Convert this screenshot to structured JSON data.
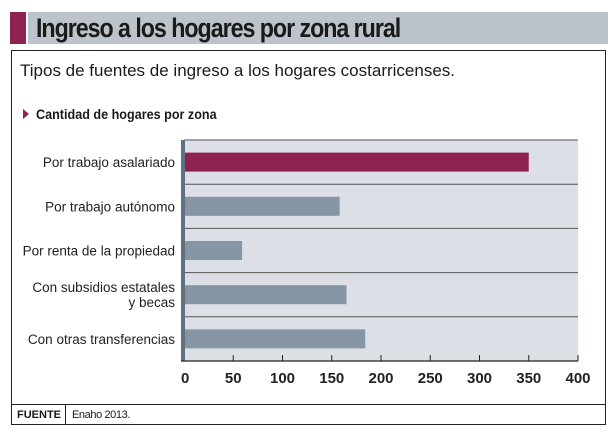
{
  "header": {
    "title": "Ingreso a los hogares por zona rural"
  },
  "subtitle": "Tipos de fuentes de ingreso a los hogares costarricenses.",
  "section_title": "Cantidad de hogares por zona",
  "footer": {
    "label": "FUENTE",
    "value": "Enaho 2013."
  },
  "colors": {
    "accent": "#8f2350",
    "bar": "#8796a4",
    "plot_bg": "#dcdfe6",
    "axis": "#5f7080"
  },
  "chart_data": {
    "type": "bar",
    "orientation": "horizontal",
    "title": "Cantidad de hogares por zona",
    "categories": [
      [
        "Por trabajo asalariado"
      ],
      [
        "Por trabajo autónomo"
      ],
      [
        "Por renta de la propiedad"
      ],
      [
        "Con subsidios estatales",
        "y becas"
      ],
      [
        "Con otras transferencias"
      ]
    ],
    "values": [
      350,
      158,
      59,
      165,
      184
    ],
    "highlight_index": 0,
    "xlim": [
      0,
      400
    ],
    "xticks": [
      0,
      50,
      100,
      150,
      200,
      250,
      300,
      350,
      400
    ],
    "xlabel": "",
    "ylabel": "",
    "grid": "horizontal separators"
  }
}
